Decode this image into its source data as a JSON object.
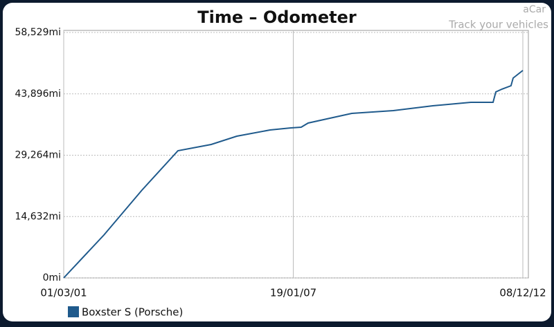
{
  "brand": "aCar",
  "tagline": "Track your vehicles",
  "chart_data": {
    "type": "line",
    "title": "Time – Odometer",
    "x": [
      "01/03/01",
      "12/03/02",
      "04/03/03",
      "04/02/04",
      "11/12/04",
      "08/08/05",
      "16/06/06",
      "27/12/06",
      "03/04/07",
      "07/06/07",
      "20/07/08",
      "13/08/09",
      "18/08/10",
      "09/08/11",
      "04/03/12",
      "30/03/12",
      "27/05/12",
      "19/08/12",
      "08/09/12",
      "08/12/12"
    ],
    "series": [
      {
        "name": "Boxster S (Porsche)",
        "color": "#1f5a8c",
        "values": [
          0,
          10224,
          20942,
          30342,
          31826,
          33805,
          35289,
          35783,
          35948,
          36938,
          39247,
          39906,
          41060,
          41885,
          41885,
          44358,
          45018,
          45842,
          47656,
          49470
        ]
      }
    ],
    "xlim": [
      "01/03/01",
      "08/12/12"
    ],
    "xticks": [
      "01/03/01",
      "19/01/07",
      "08/12/12"
    ],
    "ylim": [
      0,
      58529
    ],
    "yticks": [
      {
        "value": 0,
        "label": "0mi"
      },
      {
        "value": 14632,
        "label": "14,632mi"
      },
      {
        "value": 29264,
        "label": "29,264mi"
      },
      {
        "value": 43896,
        "label": "43,896mi"
      },
      {
        "value": 58529,
        "label": "58,529mi"
      }
    ],
    "grid": true,
    "legend": "bottom-left"
  }
}
